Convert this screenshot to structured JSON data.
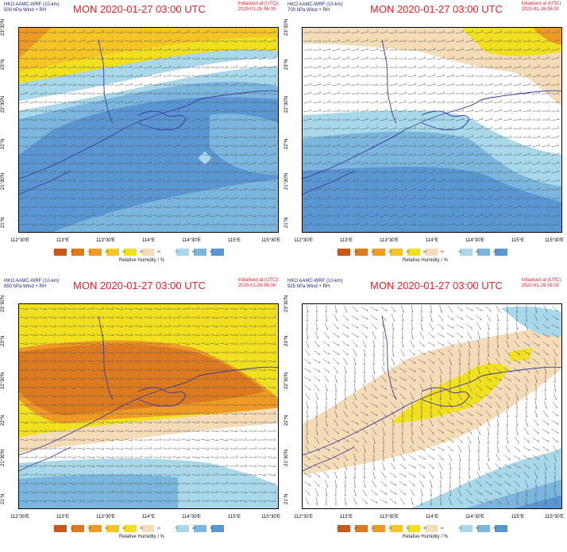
{
  "colors": {
    "rh_0": "#c8581a",
    "rh_10": "#db7a1e",
    "rh_20": "#ee9a24",
    "rh_30": "#f5c526",
    "rh_40": "#f0e020",
    "rh_50": "#f5dcb8",
    "rh_70": "#a8d8ea",
    "rh_80": "#7ab6de",
    "rh_90": "#5a96d2",
    "coast": "#3b3b9a",
    "title_red": "#e8202a",
    "model_blue": "#1a2a80"
  },
  "lat_labels": [
    "21°N",
    "21°30'N",
    "22°N",
    "22°30'N",
    "23°N",
    "23°30'N"
  ],
  "lon_labels": [
    "112°30'E",
    "113°E",
    "113°30'E",
    "114°E",
    "114°30'E",
    "115°E",
    "115°30'E"
  ],
  "colorbar": {
    "ticks": [
      "0",
      "10",
      "20",
      "30",
      "40",
      "50",
      "60",
      "70",
      "80",
      "90"
    ],
    "label": "Relative Humidity / %"
  },
  "panels": [
    {
      "model": "HKO AAMC-WRF (10-km)",
      "level": "500 hPa Wind + RH",
      "title": "MON 2020-01-27 03:00 UTC",
      "init_label": "Initialised at (UTC):",
      "init_time": "2020-01-26 06:00"
    },
    {
      "model": "HKO AAMC-WRF (10-km)",
      "level": "700 hPa Wind + RH",
      "title": "MON 2020-01-27 03:00 UTC",
      "init_label": "Initialised at (UTC):",
      "init_time": "2020-01-26 06:00"
    },
    {
      "model": "HKO AAMC-WRF (10-km)",
      "level": "850 hPa Wind + RH",
      "title": "MON 2020-01-27 03:00 UTC",
      "init_label": "Initialised at (UTC):",
      "init_time": "2020-01-26 06:00"
    },
    {
      "model": "HKO AAMC-WRF (10-km)",
      "level": "925 hPa Wind + RH",
      "title": "MON 2020-01-27 03:00 UTC",
      "init_label": "Initialised at (UTC):",
      "init_time": "2020-01-26 06:00"
    }
  ]
}
